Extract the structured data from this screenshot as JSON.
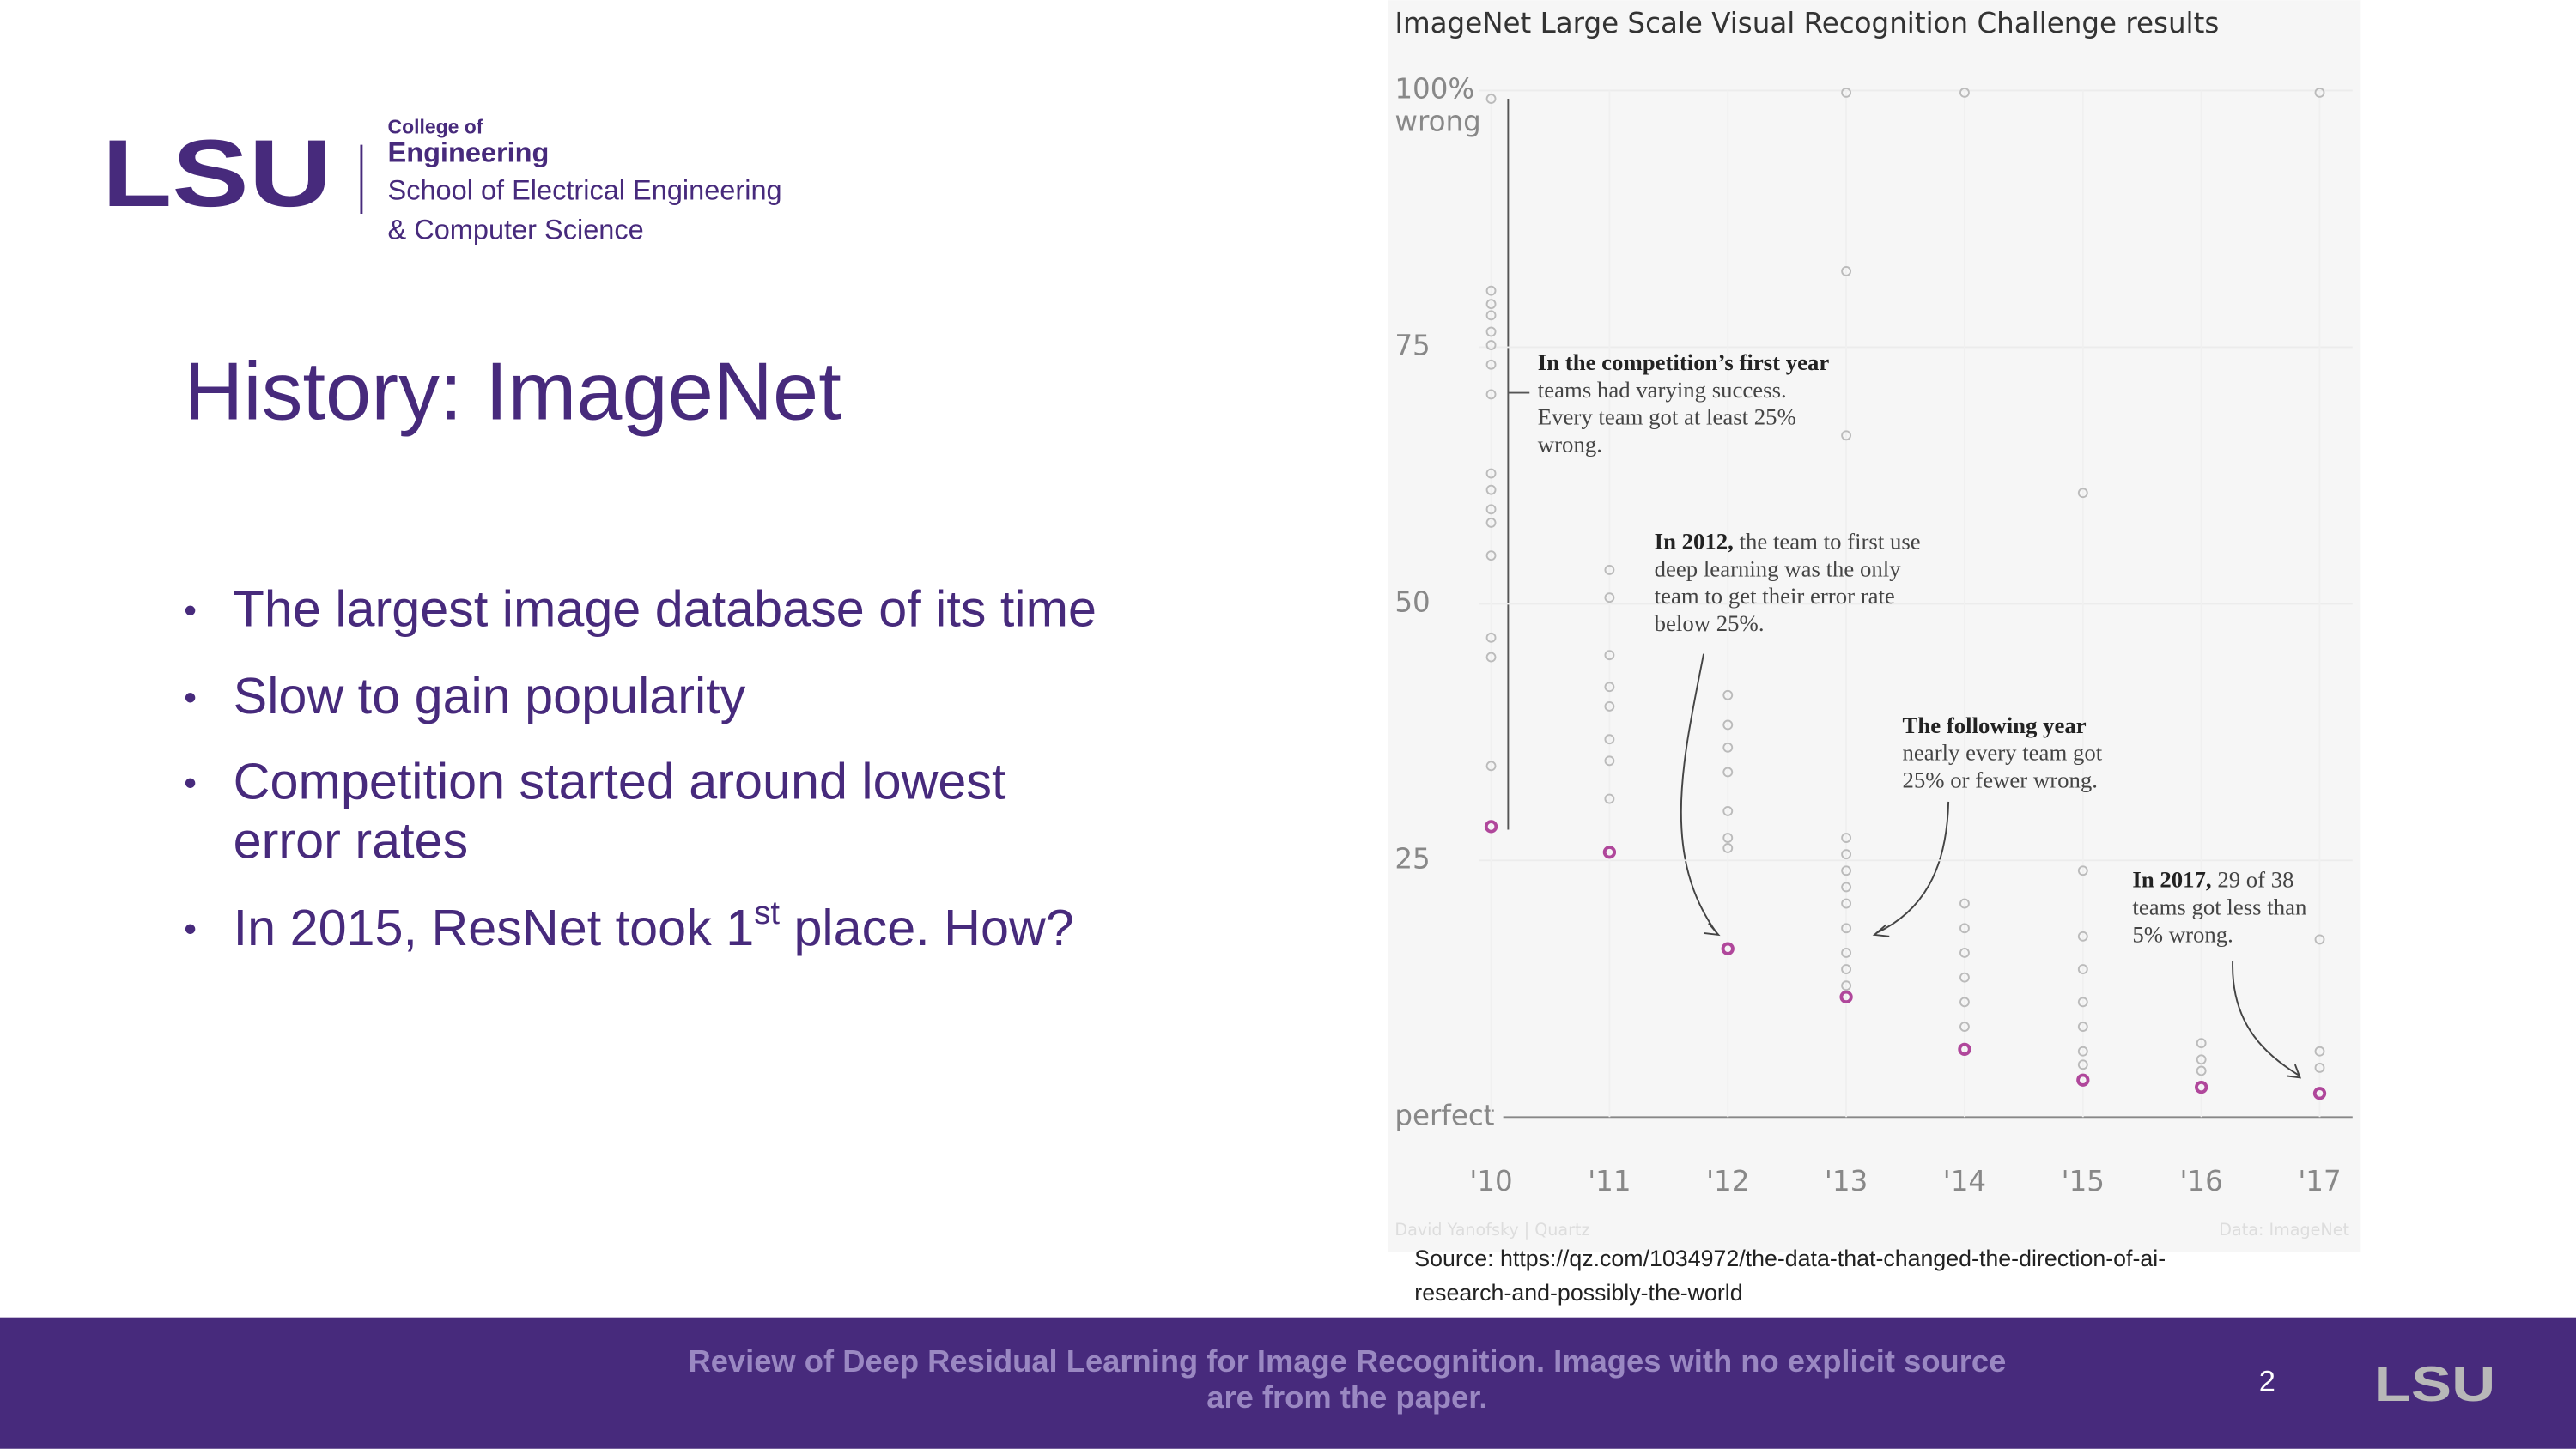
{
  "logo": {
    "mark": "LSU",
    "college": "College of",
    "engineering": "Engineering",
    "school_1": "School of Electrical Engineering",
    "school_2": "& Computer Science"
  },
  "title": "History: ImageNet",
  "bullets": [
    "The largest image database of its time",
    "Slow to gain popularity",
    [
      "Competition started around lowest",
      "error rates"
    ],
    {
      "text": "In 2015, ResNet took 1",
      "sup": "st",
      "after": " place. How?"
    }
  ],
  "source": [
    "Source: https://qz.com/1034972/the-data-that-changed-the-direction-of-ai-",
    "research-and-possibly-the-world"
  ],
  "footer": {
    "text": [
      "Review of Deep Residual Learning for Image Recognition. Images with no explicit source",
      "are from the paper."
    ],
    "page": "2",
    "logo": "LSU"
  },
  "chart_data": {
    "type": "scatter",
    "title": "ImageNet Large Scale Visual Recognition Challenge results",
    "y_note": "wrong",
    "xlim": [
      2009.2,
      2017.25
    ],
    "ylim": [
      0,
      100
    ],
    "xticks": [
      {
        "value": 2010,
        "label": "'10"
      },
      {
        "value": 2011,
        "label": "'11"
      },
      {
        "value": 2012,
        "label": "'12"
      },
      {
        "value": 2013,
        "label": "'13"
      },
      {
        "value": 2014,
        "label": "'14"
      },
      {
        "value": 2015,
        "label": "'15"
      },
      {
        "value": 2016,
        "label": "'16"
      },
      {
        "value": 2017,
        "label": "'17"
      }
    ],
    "yticks": [
      {
        "value": 0,
        "label": "perfect"
      },
      25,
      50,
      75,
      {
        "value": 100,
        "label": "100%"
      }
    ],
    "grid": true,
    "series": [
      {
        "color": "#bbbbbb",
        "x": [
          2010,
          2010,
          2010,
          2010,
          2010,
          2010,
          2010,
          2010,
          2010,
          2010,
          2010,
          2010,
          2010,
          2010,
          2010,
          2010,
          2011,
          2011,
          2011,
          2011,
          2011,
          2011,
          2011,
          2011,
          2012,
          2012,
          2012,
          2012,
          2012,
          2012,
          2012,
          2013,
          2013,
          2013,
          2013,
          2013,
          2013,
          2013,
          2013,
          2013,
          2013,
          2013,
          2013,
          2014,
          2014,
          2014,
          2014,
          2014,
          2014,
          2014,
          2015,
          2015,
          2015,
          2015,
          2015,
          2015,
          2015,
          2015,
          2016,
          2016,
          2016,
          2017,
          2017,
          2017,
          2017
        ],
        "values": [
          99.2,
          80.5,
          79.2,
          78.1,
          76.5,
          75.2,
          73.3,
          70.4,
          62.7,
          61.1,
          59.2,
          57.9,
          54.7,
          46.7,
          44.8,
          34.2,
          53.3,
          50.6,
          45,
          41.9,
          40,
          36.8,
          34.7,
          31,
          41.1,
          38.2,
          36,
          33.6,
          29.8,
          27.2,
          26.2,
          99.8,
          82.4,
          66.4,
          27.2,
          25.6,
          24,
          22.4,
          20.8,
          18.4,
          16,
          14.4,
          12.8,
          99.8,
          20.8,
          18.4,
          16,
          13.6,
          11.2,
          8.8,
          60.8,
          24,
          17.6,
          14.4,
          11.2,
          8.8,
          6.4,
          5.1,
          7.2,
          5.6,
          4.5,
          99.8,
          17.3,
          6.4,
          4.8
        ]
      },
      {
        "color": "#b0479b",
        "x": [
          2010,
          2011,
          2012,
          2013,
          2014,
          2015,
          2016,
          2017
        ],
        "values": [
          28.3,
          25.8,
          16.4,
          11.7,
          6.6,
          3.6,
          2.9,
          2.3
        ]
      }
    ],
    "annotations": [
      {
        "title": "In the competition’s first year",
        "lines": [
          "teams had varying success.",
          "Every team got at least 25%",
          "wrong."
        ]
      },
      {
        "title": "In 2012,",
        "lines": [
          " the team to first use",
          "deep learning was the only",
          "team to get their error rate",
          "below 25%."
        ]
      },
      {
        "title": "The following year",
        "lines": [
          "nearly every team got",
          "25% or fewer wrong."
        ]
      },
      {
        "title": "In 2017,",
        "lines": [
          " 29 of 38",
          "teams got less than",
          "5% wrong."
        ]
      }
    ],
    "credit_left": "David Yanofsky | Quartz",
    "credit_right": "Data: ImageNet"
  }
}
